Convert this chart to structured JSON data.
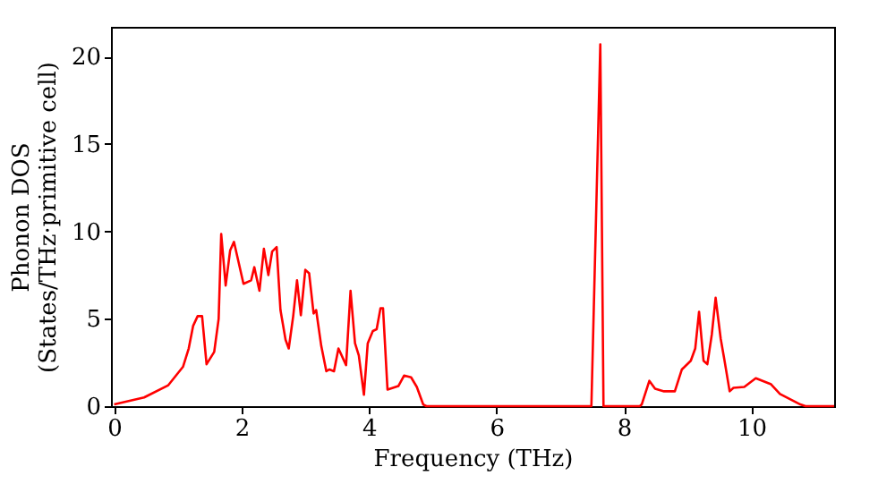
{
  "chart_data": {
    "type": "line",
    "xlabel": "Frequency (THz)",
    "ylabel": "Phonon DOS\n(States/THz·primitive cell)",
    "xlim": [
      -0.05,
      11.3
    ],
    "ylim": [
      0,
      21.7
    ],
    "xticks": [
      0,
      2,
      4,
      6,
      8,
      10
    ],
    "yticks": [
      0,
      5,
      10,
      15,
      20
    ],
    "grid": false,
    "line_style": "solid",
    "series": [
      {
        "color": "#ff0000",
        "x": [
          0,
          0.47,
          0.85,
          1.08,
          1.17,
          1.24,
          1.31,
          1.38,
          1.45,
          1.57,
          1.64,
          1.68,
          1.75,
          1.82,
          1.88,
          2.03,
          2.15,
          2.2,
          2.28,
          2.35,
          2.42,
          2.48,
          2.55,
          2.61,
          2.69,
          2.74,
          2.81,
          2.87,
          2.93,
          3.0,
          3.06,
          3.13,
          3.17,
          3.25,
          3.33,
          3.38,
          3.45,
          3.52,
          3.64,
          3.71,
          3.78,
          3.84,
          3.92,
          3.98,
          4.06,
          4.12,
          4.18,
          4.22,
          4.29,
          4.46,
          4.55,
          4.66,
          4.75,
          4.85,
          4.9,
          7.49,
          7.63,
          7.68,
          8.25,
          8.28,
          8.4,
          8.49,
          8.63,
          8.8,
          8.91,
          9.05,
          9.12,
          9.18,
          9.25,
          9.31,
          9.38,
          9.44,
          9.52,
          9.58,
          9.66,
          9.72,
          9.89,
          10.07,
          10.31,
          10.45,
          10.77,
          10.85,
          11.3
        ],
        "values": [
          0.1,
          0.5,
          1.2,
          2.25,
          3.3,
          4.6,
          5.15,
          5.15,
          2.4,
          3.1,
          5.0,
          9.85,
          6.9,
          8.9,
          9.4,
          7.0,
          7.2,
          7.95,
          6.6,
          9.0,
          7.5,
          8.85,
          9.1,
          5.5,
          3.8,
          3.3,
          5.15,
          7.2,
          5.2,
          7.8,
          7.6,
          5.3,
          5.5,
          3.45,
          2.0,
          2.1,
          2.0,
          3.3,
          2.35,
          6.6,
          3.6,
          2.9,
          0.65,
          3.6,
          4.3,
          4.4,
          5.6,
          5.6,
          0.95,
          1.15,
          1.75,
          1.65,
          1.1,
          0.1,
          0,
          0,
          20.7,
          0,
          0,
          0.1,
          1.45,
          1.0,
          0.85,
          0.85,
          2.1,
          2.6,
          3.3,
          5.4,
          2.6,
          2.4,
          4.1,
          6.2,
          3.85,
          2.6,
          0.85,
          1.05,
          1.1,
          1.6,
          1.25,
          0.7,
          0.1,
          0,
          0
        ]
      }
    ]
  }
}
